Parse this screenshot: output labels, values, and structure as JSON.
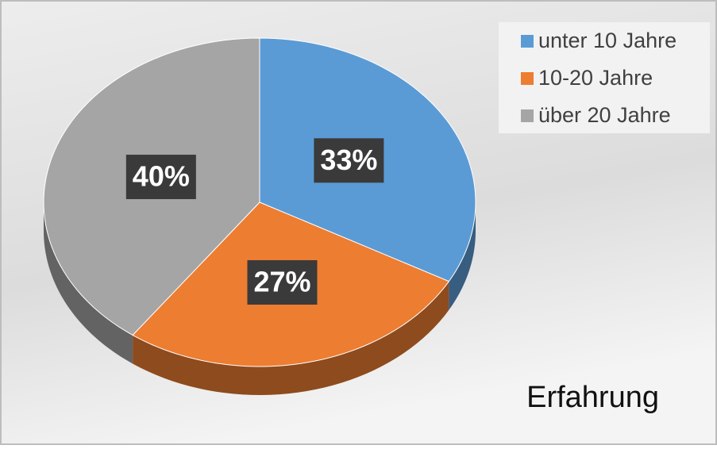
{
  "chart_data": {
    "type": "pie",
    "title": "Erfahrung",
    "categories": [
      "unter 10 Jahre",
      "10-20 Jahre",
      "über 20 Jahre"
    ],
    "values": [
      33,
      27,
      40
    ],
    "value_labels": [
      "33%",
      "27%",
      "40%"
    ],
    "colors": [
      "#5b9bd5",
      "#ed7d31",
      "#a5a5a5"
    ],
    "legend": "top-right"
  }
}
